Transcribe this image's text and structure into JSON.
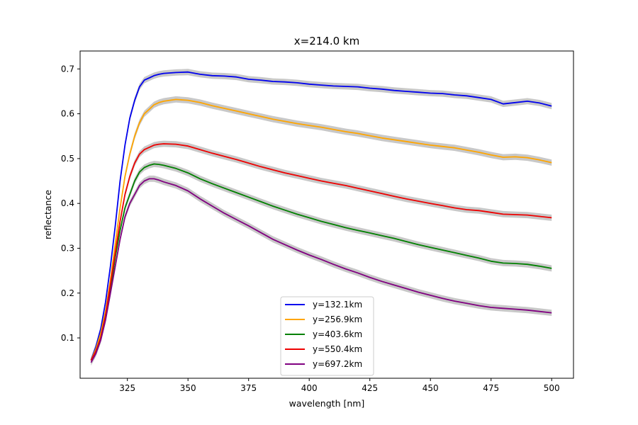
{
  "chart_data": {
    "type": "line",
    "title": "x=214.0 km",
    "xlabel": "wavelength [nm]",
    "ylabel": "reflectance",
    "xlim": [
      305.5,
      509
    ],
    "ylim": [
      0.01,
      0.74
    ],
    "xticks": [
      325,
      350,
      375,
      400,
      425,
      450,
      475,
      500
    ],
    "yticks": [
      0.1,
      0.2,
      0.3,
      0.4,
      0.5,
      0.6,
      0.7
    ],
    "xtick_labels": [
      "325",
      "350",
      "375",
      "400",
      "425",
      "450",
      "475",
      "500"
    ],
    "ytick_labels": [
      "0.1",
      "0.2",
      "0.3",
      "0.4",
      "0.5",
      "0.6",
      "0.7"
    ],
    "grid": false,
    "legend_position": "lower-center",
    "uncertainty_band_color": "#c8c8c8",
    "series": [
      {
        "name": "y=132.1km",
        "color": "#0000ee",
        "x": [
          310,
          312,
          314,
          316,
          318,
          320,
          322,
          324,
          326,
          328,
          330,
          332,
          334,
          336,
          338,
          340,
          345,
          350,
          355,
          360,
          365,
          370,
          375,
          380,
          385,
          390,
          395,
          400,
          405,
          410,
          415,
          420,
          425,
          430,
          435,
          440,
          445,
          450,
          455,
          460,
          465,
          470,
          475,
          480,
          485,
          490,
          495,
          500
        ],
        "y": [
          0.05,
          0.08,
          0.12,
          0.18,
          0.26,
          0.35,
          0.45,
          0.53,
          0.59,
          0.63,
          0.66,
          0.675,
          0.68,
          0.685,
          0.688,
          0.69,
          0.692,
          0.693,
          0.688,
          0.685,
          0.684,
          0.682,
          0.677,
          0.675,
          0.672,
          0.671,
          0.669,
          0.666,
          0.664,
          0.662,
          0.661,
          0.66,
          0.657,
          0.655,
          0.652,
          0.65,
          0.648,
          0.646,
          0.645,
          0.642,
          0.64,
          0.636,
          0.632,
          0.622,
          0.625,
          0.628,
          0.624,
          0.617
        ]
      },
      {
        "name": "y=256.9km",
        "color": "#ffa500",
        "x": [
          310,
          312,
          314,
          316,
          318,
          320,
          322,
          324,
          326,
          328,
          330,
          332,
          334,
          336,
          338,
          340,
          345,
          350,
          355,
          360,
          365,
          370,
          375,
          380,
          385,
          390,
          395,
          400,
          405,
          410,
          415,
          420,
          425,
          430,
          435,
          440,
          445,
          450,
          455,
          460,
          465,
          470,
          475,
          480,
          485,
          490,
          495,
          500
        ],
        "y": [
          0.05,
          0.075,
          0.11,
          0.16,
          0.23,
          0.31,
          0.39,
          0.46,
          0.51,
          0.55,
          0.58,
          0.6,
          0.61,
          0.62,
          0.625,
          0.628,
          0.632,
          0.63,
          0.625,
          0.618,
          0.612,
          0.606,
          0.6,
          0.594,
          0.588,
          0.583,
          0.578,
          0.574,
          0.57,
          0.565,
          0.56,
          0.556,
          0.551,
          0.546,
          0.542,
          0.538,
          0.534,
          0.53,
          0.527,
          0.524,
          0.519,
          0.514,
          0.508,
          0.503,
          0.504,
          0.502,
          0.497,
          0.491
        ]
      },
      {
        "name": "y=403.6km",
        "color": "#008000",
        "x": [
          310,
          312,
          314,
          316,
          318,
          320,
          322,
          324,
          326,
          328,
          330,
          332,
          334,
          336,
          338,
          340,
          345,
          350,
          355,
          360,
          365,
          370,
          375,
          380,
          385,
          390,
          395,
          400,
          405,
          410,
          415,
          420,
          425,
          430,
          435,
          440,
          445,
          450,
          455,
          460,
          465,
          470,
          475,
          480,
          485,
          490,
          495,
          500
        ],
        "y": [
          0.05,
          0.07,
          0.1,
          0.15,
          0.21,
          0.28,
          0.34,
          0.39,
          0.42,
          0.45,
          0.47,
          0.48,
          0.485,
          0.488,
          0.487,
          0.485,
          0.478,
          0.468,
          0.455,
          0.444,
          0.434,
          0.424,
          0.414,
          0.404,
          0.394,
          0.385,
          0.376,
          0.368,
          0.36,
          0.353,
          0.346,
          0.34,
          0.334,
          0.328,
          0.322,
          0.315,
          0.308,
          0.302,
          0.296,
          0.29,
          0.284,
          0.278,
          0.271,
          0.267,
          0.266,
          0.264,
          0.26,
          0.255
        ]
      },
      {
        "name": "y=550.4km",
        "color": "#ee0000",
        "x": [
          310,
          312,
          314,
          316,
          318,
          320,
          322,
          324,
          326,
          328,
          330,
          332,
          334,
          336,
          338,
          340,
          345,
          350,
          355,
          360,
          365,
          370,
          375,
          380,
          385,
          390,
          395,
          400,
          405,
          410,
          415,
          420,
          425,
          430,
          435,
          440,
          445,
          450,
          455,
          460,
          465,
          470,
          475,
          480,
          485,
          490,
          495,
          500
        ],
        "y": [
          0.05,
          0.07,
          0.1,
          0.15,
          0.22,
          0.29,
          0.36,
          0.42,
          0.46,
          0.49,
          0.51,
          0.52,
          0.525,
          0.53,
          0.532,
          0.533,
          0.532,
          0.528,
          0.52,
          0.512,
          0.505,
          0.498,
          0.49,
          0.482,
          0.475,
          0.468,
          0.462,
          0.456,
          0.45,
          0.445,
          0.44,
          0.434,
          0.428,
          0.422,
          0.416,
          0.41,
          0.405,
          0.4,
          0.395,
          0.39,
          0.386,
          0.384,
          0.38,
          0.376,
          0.375,
          0.374,
          0.371,
          0.368
        ]
      },
      {
        "name": "y=697.2km",
        "color": "#800080",
        "x": [
          310,
          312,
          314,
          316,
          318,
          320,
          322,
          324,
          326,
          328,
          330,
          332,
          334,
          336,
          338,
          340,
          345,
          350,
          355,
          360,
          365,
          370,
          375,
          380,
          385,
          390,
          395,
          400,
          405,
          410,
          415,
          420,
          425,
          430,
          435,
          440,
          445,
          450,
          455,
          460,
          465,
          470,
          475,
          480,
          485,
          490,
          495,
          500
        ],
        "y": [
          0.045,
          0.065,
          0.095,
          0.14,
          0.2,
          0.26,
          0.32,
          0.37,
          0.4,
          0.42,
          0.44,
          0.45,
          0.455,
          0.455,
          0.452,
          0.448,
          0.44,
          0.428,
          0.41,
          0.394,
          0.378,
          0.364,
          0.35,
          0.335,
          0.32,
          0.308,
          0.296,
          0.285,
          0.275,
          0.264,
          0.254,
          0.245,
          0.235,
          0.226,
          0.218,
          0.21,
          0.202,
          0.195,
          0.188,
          0.182,
          0.177,
          0.172,
          0.168,
          0.166,
          0.164,
          0.162,
          0.159,
          0.156
        ]
      }
    ]
  }
}
